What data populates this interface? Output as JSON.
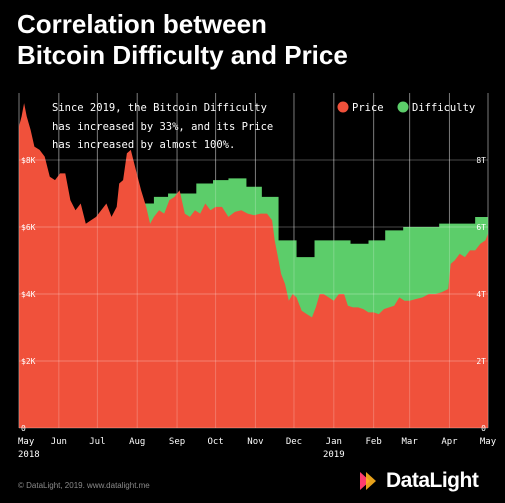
{
  "header": {
    "title_line1": "Correlation between",
    "title_line2": "Bitcoin Difficulty and Price"
  },
  "annotation": {
    "line1": "Since 2019, the Bitcoin Difficulty",
    "line2": "has increased by 33%, and its Price",
    "line3": "has increased by almost 100%."
  },
  "footer": {
    "credit": "© DataLight, 2019. www.datalight.me",
    "logo_text": "DataLight"
  },
  "colors": {
    "background": "#000000",
    "price": "#f0513b",
    "difficulty": "#5ccd6a",
    "grid": "#555555",
    "axis_text": "#ffffff",
    "logo_accent_1": "#ff3c6e",
    "logo_accent_2": "#ffb21e"
  },
  "chart_data": {
    "type": "area",
    "title": "Correlation between Bitcoin Difficulty and Price",
    "legend_position": "top-right",
    "grid": true,
    "x_range": [
      "2018-05-01",
      "2019-05-01"
    ],
    "x_ticks": [
      {
        "date": "2018-05-01",
        "label": "May",
        "sub": "2018"
      },
      {
        "date": "2018-06-01",
        "label": "Jun",
        "sub": ""
      },
      {
        "date": "2018-07-01",
        "label": "Jul",
        "sub": ""
      },
      {
        "date": "2018-08-01",
        "label": "Aug",
        "sub": ""
      },
      {
        "date": "2018-09-01",
        "label": "Sep",
        "sub": ""
      },
      {
        "date": "2018-10-01",
        "label": "Oct",
        "sub": ""
      },
      {
        "date": "2018-11-01",
        "label": "Nov",
        "sub": ""
      },
      {
        "date": "2018-12-01",
        "label": "Dec",
        "sub": ""
      },
      {
        "date": "2019-01-01",
        "label": "Jan",
        "sub": "2019"
      },
      {
        "date": "2019-02-01",
        "label": "Feb",
        "sub": ""
      },
      {
        "date": "2019-03-01",
        "label": "Mar",
        "sub": ""
      },
      {
        "date": "2019-04-01",
        "label": "Apr",
        "sub": ""
      },
      {
        "date": "2019-05-01",
        "label": "May",
        "sub": ""
      }
    ],
    "y_left": {
      "range": [
        0,
        10000
      ],
      "ticks": [
        0,
        2000,
        4000,
        6000,
        8000
      ],
      "labels": [
        "0",
        "$2K",
        "$4K",
        "$6K",
        "$8K"
      ]
    },
    "y_right": {
      "range": [
        0,
        10
      ],
      "ticks": [
        0,
        2,
        4,
        6,
        8
      ],
      "labels": [
        "0",
        "2T",
        "4T",
        "6T",
        "8T"
      ]
    },
    "series": [
      {
        "name": "Price",
        "axis": "left",
        "x": [
          "2018-05-01",
          "2018-05-03",
          "2018-05-05",
          "2018-05-07",
          "2018-05-10",
          "2018-05-13",
          "2018-05-17",
          "2018-05-21",
          "2018-05-25",
          "2018-05-29",
          "2018-06-02",
          "2018-06-06",
          "2018-06-10",
          "2018-06-14",
          "2018-06-18",
          "2018-06-22",
          "2018-06-26",
          "2018-06-30",
          "2018-07-04",
          "2018-07-08",
          "2018-07-12",
          "2018-07-16",
          "2018-07-18",
          "2018-07-21",
          "2018-07-24",
          "2018-07-27",
          "2018-07-31",
          "2018-08-04",
          "2018-08-08",
          "2018-08-11",
          "2018-08-14",
          "2018-08-18",
          "2018-08-22",
          "2018-08-26",
          "2018-08-30",
          "2018-09-03",
          "2018-09-07",
          "2018-09-11",
          "2018-09-15",
          "2018-09-19",
          "2018-09-23",
          "2018-09-27",
          "2018-10-01",
          "2018-10-06",
          "2018-10-11",
          "2018-10-16",
          "2018-10-21",
          "2018-10-26",
          "2018-10-31",
          "2018-11-05",
          "2018-11-10",
          "2018-11-14",
          "2018-11-16",
          "2018-11-19",
          "2018-11-21",
          "2018-11-24",
          "2018-11-27",
          "2018-11-30",
          "2018-12-03",
          "2018-12-07",
          "2018-12-11",
          "2018-12-15",
          "2018-12-18",
          "2018-12-21",
          "2018-12-24",
          "2018-12-28",
          "2019-01-01",
          "2019-01-05",
          "2019-01-09",
          "2019-01-12",
          "2019-01-16",
          "2019-01-20",
          "2019-01-24",
          "2019-01-28",
          "2019-02-01",
          "2019-02-05",
          "2019-02-09",
          "2019-02-13",
          "2019-02-17",
          "2019-02-21",
          "2019-02-25",
          "2019-03-01",
          "2019-03-06",
          "2019-03-11",
          "2019-03-16",
          "2019-03-21",
          "2019-03-26",
          "2019-03-31",
          "2019-04-02",
          "2019-04-05",
          "2019-04-09",
          "2019-04-13",
          "2019-04-17",
          "2019-04-21",
          "2019-04-25",
          "2019-04-29",
          "2019-05-01"
        ],
        "values": [
          9000,
          9300,
          9700,
          9300,
          8900,
          8400,
          8300,
          8100,
          7500,
          7400,
          7600,
          7600,
          6800,
          6500,
          6700,
          6100,
          6200,
          6300,
          6500,
          6700,
          6300,
          6600,
          7300,
          7400,
          8200,
          8300,
          7700,
          7100,
          6600,
          6100,
          6300,
          6500,
          6400,
          6800,
          6900,
          7100,
          6400,
          6300,
          6500,
          6400,
          6700,
          6500,
          6600,
          6600,
          6300,
          6450,
          6500,
          6400,
          6350,
          6400,
          6400,
          6200,
          5600,
          5000,
          4600,
          4300,
          3800,
          4000,
          3900,
          3500,
          3400,
          3300,
          3600,
          4000,
          4000,
          3900,
          3800,
          4000,
          4000,
          3650,
          3600,
          3600,
          3550,
          3450,
          3450,
          3400,
          3550,
          3600,
          3650,
          3900,
          3800,
          3800,
          3850,
          3900,
          4000,
          4000,
          4050,
          4150,
          4900,
          5000,
          5200,
          5100,
          5300,
          5300,
          5500,
          5600,
          5800
        ]
      },
      {
        "name": "Difficulty",
        "axis": "right",
        "x": [
          "2018-05-01",
          "2018-05-12",
          "2018-05-22",
          "2018-05-31",
          "2018-06-11",
          "2018-06-21",
          "2018-07-02",
          "2018-07-12",
          "2018-07-23",
          "2018-08-03",
          "2018-08-14",
          "2018-08-25",
          "2018-09-05",
          "2018-09-16",
          "2018-09-29",
          "2018-10-11",
          "2018-10-25",
          "2018-11-06",
          "2018-11-19",
          "2018-12-03",
          "2018-12-17",
          "2019-01-01",
          "2019-01-14",
          "2019-01-28",
          "2019-02-10",
          "2019-02-24",
          "2019-03-10",
          "2019-03-24",
          "2019-04-07",
          "2019-04-21",
          "2019-05-01"
        ],
        "values": [
          4.2,
          4.3,
          4.6,
          5.0,
          5.1,
          5.2,
          5.4,
          6.1,
          6.4,
          6.7,
          6.9,
          7.0,
          7.0,
          7.3,
          7.4,
          7.45,
          7.2,
          6.9,
          5.6,
          5.1,
          5.6,
          5.6,
          5.5,
          5.6,
          5.9,
          6.0,
          6.0,
          6.1,
          6.1,
          6.3,
          6.5
        ]
      }
    ]
  }
}
